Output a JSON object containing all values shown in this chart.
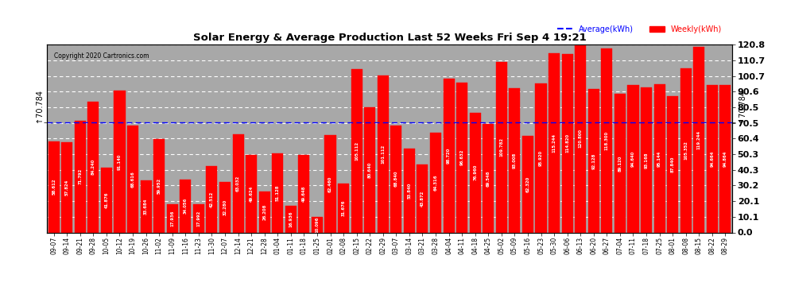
{
  "title": "Solar Energy & Average Production Last 52 Weeks Fri Sep 4 19:21",
  "copyright": "Copyright 2020 Cartronics.com",
  "average_label": "Average(kWh)",
  "weekly_label": "Weekly(kWh)",
  "average_value": 70.784,
  "plot_bg_color": "#a8a8a8",
  "fig_bg_color": "#ffffff",
  "bar_color": "#ff0000",
  "average_line_color": "#0000ff",
  "grid_color": "#ffffff",
  "ylabel_right_ticks": [
    0.0,
    10.1,
    20.1,
    30.2,
    40.3,
    50.3,
    60.4,
    70.5,
    80.5,
    90.6,
    100.7,
    110.7,
    120.8
  ],
  "ymax": 120.8,
  "categories": [
    "09-07",
    "09-14",
    "09-21",
    "09-28",
    "10-05",
    "10-12",
    "10-19",
    "10-26",
    "11-02",
    "11-09",
    "11-16",
    "11-23",
    "11-30",
    "12-07",
    "12-14",
    "12-21",
    "12-28",
    "01-04",
    "01-11",
    "01-18",
    "01-25",
    "02-01",
    "02-08",
    "02-15",
    "02-22",
    "02-29",
    "03-07",
    "03-14",
    "03-21",
    "03-28",
    "04-04",
    "04-11",
    "04-18",
    "04-25",
    "05-02",
    "05-09",
    "05-16",
    "05-23",
    "05-30",
    "06-06",
    "06-13",
    "06-20",
    "06-27",
    "07-04",
    "07-11",
    "07-18",
    "07-25",
    "08-01",
    "08-08",
    "08-15",
    "08-22",
    "08-29"
  ],
  "values": [
    58.612,
    57.824,
    71.792,
    84.24,
    41.876,
    91.14,
    68.616,
    33.684,
    59.952,
    17.936,
    34.056,
    17.992,
    42.512,
    32.28,
    63.032,
    49.624,
    26.208,
    51.128,
    16.936,
    49.648,
    10.096,
    62.46,
    31.676,
    105.112,
    80.64,
    101.112,
    68.84,
    53.84,
    43.872,
    64.316,
    98.72,
    96.632,
    76.96,
    69.548,
    109.782,
    93.008,
    62.32,
    95.92,
    115.244,
    114.82,
    120.8,
    92.128,
    118.3,
    89.12,
    94.64,
    93.168,
    95.144,
    87.84,
    105.352,
    119.244,
    94.664,
    94.864
  ]
}
